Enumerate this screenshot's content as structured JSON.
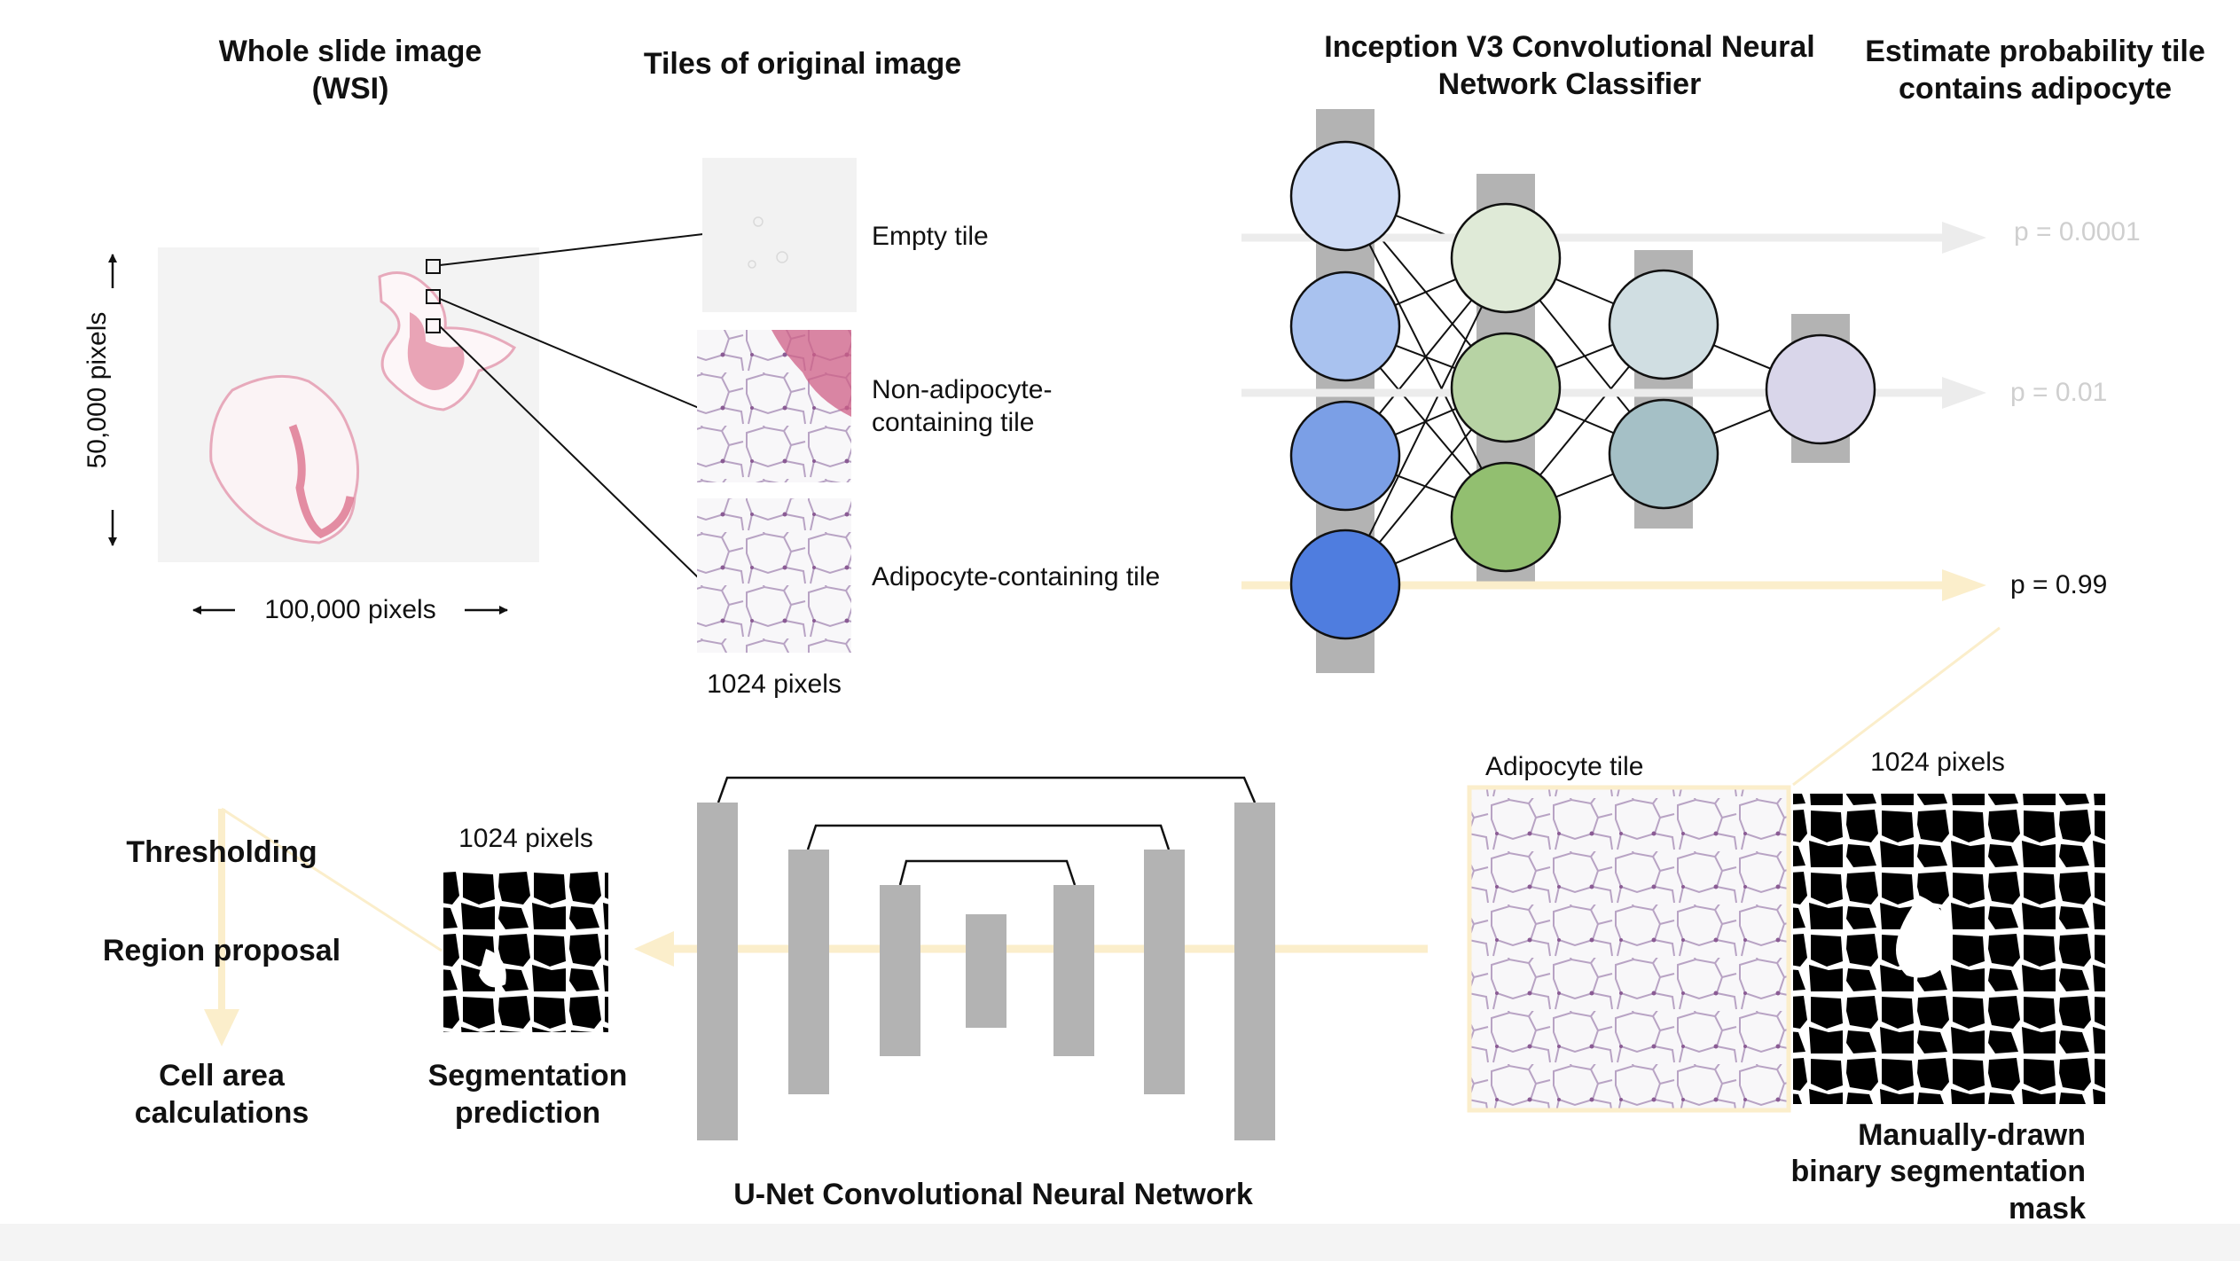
{
  "headings": {
    "wsi_line1": "Whole slide image",
    "wsi_line2": "(WSI)",
    "tiles": "Tiles of original image",
    "inception_line1": "Inception V3 Convolutional Neural",
    "inception_line2": "Network Classifier",
    "estimate_line1": "Estimate probability tile",
    "estimate_line2": "contains adipocyte",
    "unet": "U-Net Convolutional Neural Network"
  },
  "wsi": {
    "height_label": "50,000 pixels",
    "width_label": "100,000 pixels"
  },
  "tiles": [
    {
      "label_line1": "Empty tile",
      "label_line2": ""
    },
    {
      "label_line1": "Non-adipocyte-",
      "label_line2": "containing tile"
    },
    {
      "label_line1": "Adipocyte-containing tile",
      "label_line2": ""
    }
  ],
  "tile_size_label": "1024 pixels",
  "probabilities": [
    "p = 0.0001",
    "p = 0.01",
    "p = 0.99"
  ],
  "training": {
    "adipocyte_tile_label": "Adipocyte tile",
    "mask_size_label": "1024 pixels",
    "mask_label_line1": "Manually-drawn",
    "mask_label_line2": "binary segmentation",
    "mask_label_line3": "mask"
  },
  "prediction": {
    "size_label": "1024 pixels",
    "label_line1": "Segmentation",
    "label_line2": "prediction"
  },
  "postprocessing": {
    "step1": "Thresholding",
    "step2": "Region proposal",
    "step3_line1": "Cell area",
    "step3_line2": "calculations"
  },
  "colors": {
    "flow_arrow": "#fbeecb",
    "faint_arrow": "#ececec",
    "layer_bar": "#b3b3b3",
    "tissue": "#d9607f",
    "input_nodes": [
      "#cfdcf6",
      "#a9c2ef",
      "#7b9fe6",
      "#4f7ddf"
    ],
    "hidden1_nodes": [
      "#dfead7",
      "#b7d3a4",
      "#92bf70"
    ],
    "hidden2_nodes": [
      "#d0dee2",
      "#a5c0c6"
    ],
    "output_node": "#d9d6ea"
  }
}
